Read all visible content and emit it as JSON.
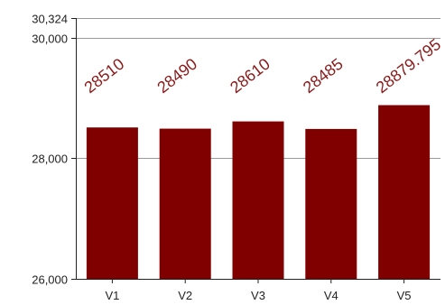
{
  "chart_data": {
    "type": "bar",
    "categories": [
      "V1",
      "V2",
      "V3",
      "V4",
      "V5"
    ],
    "values": [
      28510,
      28490,
      28610,
      28485,
      28879.795
    ],
    "data_labels": [
      "28510",
      "28490",
      "28610",
      "28485",
      "28879.795"
    ],
    "ylim": [
      26000,
      30324
    ],
    "yticks": [
      26000,
      28000,
      30000,
      30324
    ],
    "ytick_labels": [
      "26,000",
      "28,000",
      "30,000",
      "30,324"
    ],
    "grid": true,
    "legend": "none",
    "bar_color": "#800000",
    "label_color": "#8b1a1a"
  }
}
